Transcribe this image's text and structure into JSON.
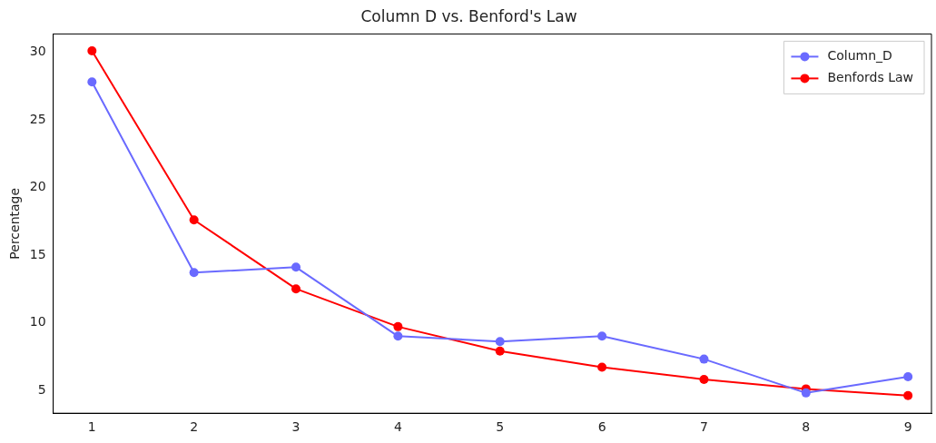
{
  "chart_data": {
    "type": "line",
    "title": "Column D vs. Benford's Law",
    "ylabel": "Percentage",
    "x": [
      1,
      2,
      3,
      4,
      5,
      6,
      7,
      8,
      9
    ],
    "series": [
      {
        "name": "Column_D",
        "color": "#6a6aff",
        "values": [
          27.8,
          13.7,
          14.1,
          9.0,
          8.6,
          9.0,
          7.3,
          4.8,
          6.0
        ]
      },
      {
        "name": "Benfords Law",
        "color": "#ff0000",
        "values": [
          30.1,
          17.6,
          12.5,
          9.7,
          7.9,
          6.7,
          5.8,
          5.1,
          4.6
        ]
      }
    ],
    "xlim": [
      0.62,
      9.23
    ],
    "xticks": [
      1,
      2,
      3,
      4,
      5,
      6,
      7,
      8,
      9
    ],
    "ylim": [
      3.3,
      31.35
    ],
    "yticks": [
      5,
      10,
      15,
      20,
      25,
      30
    ],
    "grid": false,
    "legend": "top right",
    "marker": "circle",
    "line_style": "solid"
  }
}
